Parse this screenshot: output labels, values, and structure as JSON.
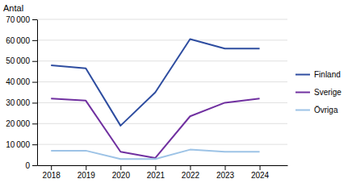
{
  "chart_data": {
    "type": "line",
    "ylabel": "Antal",
    "x": [
      2018,
      2019,
      2020,
      2021,
      2022,
      2023,
      2024
    ],
    "xlim": [
      2017.6,
      2024.8
    ],
    "xticks": [
      2018,
      2019,
      2020,
      2021,
      2022,
      2023,
      2024
    ],
    "ylim": [
      0,
      70000
    ],
    "yticks": [
      0,
      {
        "value": 10000,
        "label": "10 000"
      },
      {
        "value": 20000,
        "label": "20 000"
      },
      {
        "value": 30000,
        "label": "30 000"
      },
      {
        "value": 40000,
        "label": "40 000"
      },
      {
        "value": 50000,
        "label": "50 000"
      },
      {
        "value": 60000,
        "label": "60 000"
      },
      {
        "value": 70000,
        "label": "70 000"
      }
    ],
    "grid": true,
    "legend": "right",
    "series": [
      {
        "name": "Finland",
        "color": "#2E4DA0",
        "values": [
          48000,
          46500,
          19000,
          35000,
          60500,
          56000,
          56000
        ]
      },
      {
        "name": "Sverige",
        "color": "#7030A0",
        "values": [
          32000,
          31000,
          6500,
          3500,
          23500,
          30000,
          32000
        ]
      },
      {
        "name": "Övriga",
        "color": "#9DC3E6",
        "values": [
          7000,
          7000,
          3000,
          3000,
          7500,
          6500,
          6500
        ]
      }
    ]
  }
}
